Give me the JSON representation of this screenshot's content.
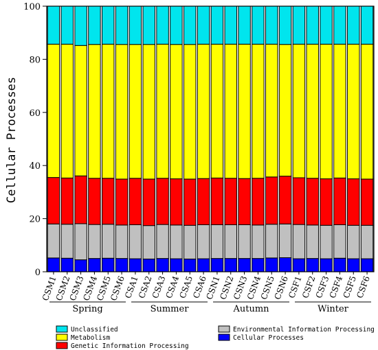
{
  "chart_data": {
    "type": "bar",
    "stacked": true,
    "percent": true,
    "ylabel": "Cellular Processes",
    "ylim": [
      0,
      100
    ],
    "yticks": [
      0,
      20,
      40,
      60,
      80,
      100
    ],
    "categories": [
      "CSM1",
      "CSM2",
      "CSM3",
      "CSM4",
      "CSM5",
      "CSM6",
      "CSA1",
      "CSA2",
      "CSA3",
      "CSA4",
      "CSA5",
      "CSA6",
      "CSN1",
      "CSN2",
      "CSN3",
      "CSN4",
      "CSN5",
      "CSN6",
      "CSF1",
      "CSF2",
      "CSF3",
      "CSF4",
      "CSF5",
      "CSF6"
    ],
    "groups": [
      {
        "label": "Spring",
        "start": 0,
        "end": 5
      },
      {
        "label": "Summer",
        "start": 6,
        "end": 11
      },
      {
        "label": "Autumn",
        "start": 12,
        "end": 17
      },
      {
        "label": "Winter",
        "start": 18,
        "end": 23
      }
    ],
    "series": [
      {
        "name": "Cellular Processes",
        "color": "#0000ff",
        "values": [
          5.2,
          5.1,
          4.5,
          5.0,
          5.1,
          5.0,
          4.9,
          4.8,
          5.0,
          4.9,
          4.8,
          4.9,
          5.0,
          5.0,
          5.0,
          5.0,
          5.2,
          5.3,
          4.9,
          5.0,
          4.9,
          5.1,
          4.9,
          4.9
        ]
      },
      {
        "name": "Environmental Information Processing",
        "color": "#c0c0c0",
        "values": [
          12.8,
          12.8,
          13.6,
          12.8,
          12.8,
          12.6,
          12.8,
          12.6,
          12.8,
          12.7,
          12.7,
          12.8,
          12.7,
          12.7,
          12.7,
          12.6,
          12.7,
          12.7,
          12.9,
          12.6,
          12.6,
          12.6,
          12.6,
          12.6
        ]
      },
      {
        "name": "Genetic Information Processing",
        "color": "#ff0000",
        "values": [
          17.5,
          17.4,
          18.0,
          17.4,
          17.3,
          17.3,
          17.5,
          17.5,
          17.4,
          17.4,
          17.4,
          17.4,
          17.6,
          17.5,
          17.4,
          17.6,
          17.8,
          18.0,
          17.6,
          17.6,
          17.5,
          17.6,
          17.5,
          17.4
        ]
      },
      {
        "name": "Metabolism",
        "color": "#ffff00",
        "values": [
          50.2,
          50.4,
          49.1,
          50.4,
          50.5,
          50.7,
          50.4,
          50.7,
          50.5,
          50.6,
          50.7,
          50.6,
          50.4,
          50.5,
          50.6,
          50.5,
          50.0,
          49.6,
          50.3,
          50.5,
          50.7,
          50.4,
          50.7,
          50.8
        ]
      },
      {
        "name": "Unclassified",
        "color": "#00e5ee",
        "values": [
          14.3,
          14.3,
          14.8,
          14.4,
          14.3,
          14.4,
          14.4,
          14.4,
          14.3,
          14.4,
          14.4,
          14.3,
          14.3,
          14.3,
          14.3,
          14.3,
          14.3,
          14.4,
          14.3,
          14.3,
          14.3,
          14.3,
          14.3,
          14.3
        ]
      }
    ],
    "legend": {
      "placement": "bottom",
      "left_column": [
        "Unclassified",
        "Metabolism",
        "Genetic Information Processing"
      ],
      "right_column": [
        "Environmental Information Processing",
        "Cellular Processes"
      ]
    },
    "grid": false
  }
}
